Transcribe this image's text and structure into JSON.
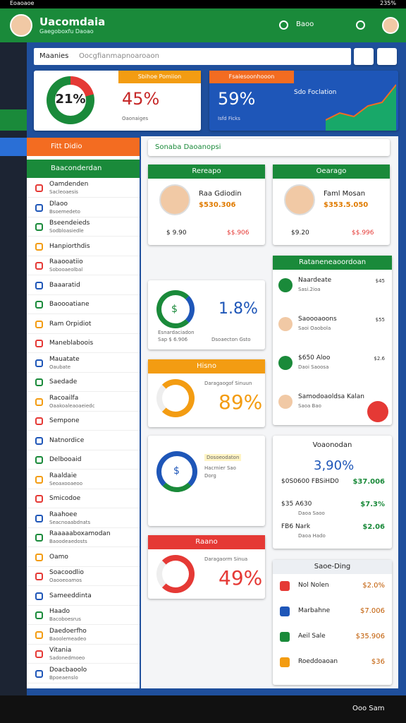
{
  "status": {
    "left": "Eoaoaoe",
    "right": "235%"
  },
  "header": {
    "title": "Uacomdaia",
    "subtitle": "Gaegoboxfu Daoao",
    "action": "Baoo"
  },
  "search": {
    "label": "Maanies",
    "placeholder": "Oocgfianmapnoaroaon"
  },
  "stats": [
    {
      "tab": "Sbihoe Pomiion",
      "donut": "21%",
      "value": "45%",
      "caption": "Oaonaiges"
    },
    {
      "tab": "Fsaiesoonhooon",
      "value": "59%",
      "label": "Sdo Foclation",
      "caption": "Isfd Ficks"
    }
  ],
  "sidebar": {
    "header": "Fitt Didio",
    "section": "Baaconderdan",
    "items": [
      {
        "name": "Oamdenden",
        "sub": "Sacleoaesis"
      },
      {
        "name": "Dlaoo",
        "sub": "Bsoemedeto"
      },
      {
        "name": "Bseendeieds",
        "sub": "Sodbloasiedle"
      },
      {
        "name": "Hanpiorthdis"
      },
      {
        "name": "Raaooatiio",
        "sub": "Sobooaeolbal"
      },
      {
        "name": "Baaaratid"
      },
      {
        "name": "Baoooatiane"
      },
      {
        "name": "Ram Orpidiot"
      },
      {
        "name": "Maneblaboois"
      },
      {
        "name": "Mauatate",
        "sub": "Oaubate"
      },
      {
        "name": "Saedade"
      },
      {
        "name": "Racoailfa",
        "sub": "Oaakoaleaoaeiedc"
      },
      {
        "name": "Sempone"
      },
      {
        "name": "Natnordice"
      },
      {
        "name": "Delbooaid"
      },
      {
        "name": "Raaldaie",
        "sub": "Seoaxooaeoo"
      },
      {
        "name": "Smicodoe"
      },
      {
        "name": "Raahoee",
        "sub": "Seacnoaabdnats"
      },
      {
        "name": "Raaaaaboxamodan",
        "sub": "Baoodeaedosts"
      },
      {
        "name": "Oamo"
      },
      {
        "name": "Soacoodlio",
        "sub": "Oaooeoamos"
      },
      {
        "name": "Sameeddinta"
      },
      {
        "name": "Haado",
        "sub": "Bacoboesrus"
      },
      {
        "name": "Daedoerfho",
        "sub": "Baoolemeadeo"
      },
      {
        "name": "Vitania",
        "sub": "Sadonedmoeo"
      },
      {
        "name": "Doacbaoolo",
        "sub": "Bpoeaenslo"
      }
    ]
  },
  "main": {
    "title": "Sonaba Daoanopsi"
  },
  "profiles": [
    {
      "tab": "Rereapo",
      "name": "Raa Gdiodin",
      "amount": "$530.306",
      "left": "$ 9.90",
      "right": "$$.906"
    },
    {
      "tab": "Oearago",
      "name": "Faml Mosan",
      "amount": "$353.5.050",
      "left": "$9.20",
      "right": "$$.996"
    }
  ],
  "growth": {
    "symbol": "$",
    "title": "Esnardaciadon",
    "sub": "Sap $ 6.906",
    "value": "1.8%",
    "caption": "Dsoaecton Gsto"
  },
  "gauges": [
    {
      "tab": "Hisno",
      "caption": "Daragaogof Sinuun",
      "value": "89%",
      "color": "#f39c12"
    },
    {
      "tab": "Raano",
      "caption": "Daragaorm Sinua",
      "value": "49%",
      "color": "#e53935"
    }
  ],
  "info": {
    "symbol": "$",
    "title": "Dosoeodaton",
    "line2": "Hacrnier Sao",
    "line3": "Dorg"
  },
  "transactions": {
    "tab": "Rataneneaoordoan",
    "items": [
      {
        "name": "Naardeate",
        "sub": "Sasi.2ioa",
        "amount": "$45"
      },
      {
        "name": "Saoooaoons",
        "sub": "Saoi Oaobola",
        "amount": "$55"
      },
      {
        "name": "$650 Aloo",
        "sub": "Daoi Saoosa",
        "amount": "$2.6"
      },
      {
        "name": "Samodoaoldsa Kalan",
        "sub": "Saoa Bao"
      }
    ]
  },
  "overview": {
    "title": "Voaonodan",
    "value": "3,90%",
    "rows": [
      {
        "name": "$0S0600 FBSiHD0",
        "amount": "$37.006"
      },
      {
        "name": "$35 A630",
        "sub": "Daoa Saoo",
        "amount": "$7.3%"
      },
      {
        "name": "FB6 Nark",
        "sub": "Daoa Hado",
        "amount": "$2.06"
      }
    ]
  },
  "list2": {
    "tab": "Saoe-Ding",
    "rows": [
      {
        "name": "Nol Nolen",
        "amount": "$2.0%"
      },
      {
        "name": "Marbahne",
        "amount": "$7.006"
      },
      {
        "name": "Aeil Sale",
        "amount": "$35.906"
      },
      {
        "name": "Roeddoaoan",
        "amount": "$36"
      }
    ]
  },
  "bottom": {
    "right": "Ooo Sam"
  }
}
